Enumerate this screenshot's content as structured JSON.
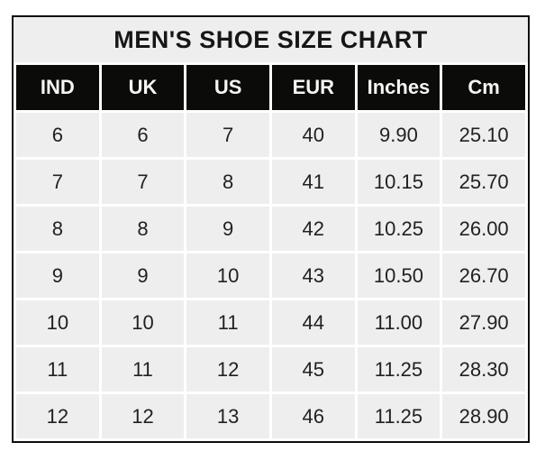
{
  "chart_data": {
    "type": "table",
    "title": "MEN'S SHOE SIZE CHART",
    "columns": [
      "IND",
      "UK",
      "US",
      "EUR",
      "Inches",
      "Cm"
    ],
    "rows": [
      [
        "6",
        "6",
        "7",
        "40",
        "9.90",
        "25.10"
      ],
      [
        "7",
        "7",
        "8",
        "41",
        "10.15",
        "25.70"
      ],
      [
        "8",
        "8",
        "9",
        "42",
        "10.25",
        "26.00"
      ],
      [
        "9",
        "9",
        "10",
        "43",
        "10.50",
        "26.70"
      ],
      [
        "10",
        "10",
        "11",
        "44",
        "11.00",
        "27.90"
      ],
      [
        "11",
        "11",
        "12",
        "45",
        "11.25",
        "28.30"
      ],
      [
        "12",
        "12",
        "13",
        "46",
        "11.25",
        "28.90"
      ]
    ]
  },
  "colors": {
    "page_bg": "#ffffff",
    "border": "#0d0d0b",
    "seam": "#ffffff",
    "header_bg": "#0b0b09",
    "header_text": "#f6f5f1",
    "cell_bg": "#efeeef",
    "cell_text": "#212121",
    "title_text": "#161616"
  }
}
